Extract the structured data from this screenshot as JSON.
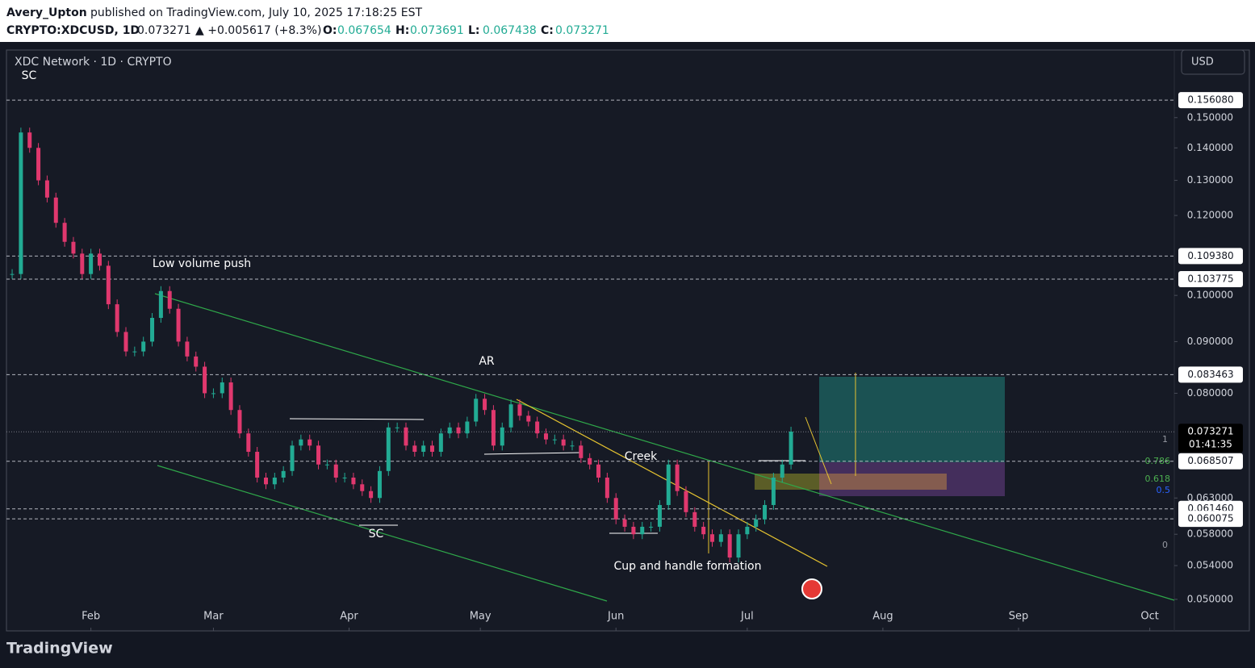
{
  "header": {
    "publisher": "Avery_Upton",
    "published": "published on TradingView.com, July 10, 2025 17:18:25 EST",
    "symbol": "CRYPTO:XDCUSD, 1D",
    "last": "0.073271",
    "change": "▲ +0.005617 (+8.3%)",
    "ohlc": [
      [
        "O:",
        "0.067654"
      ],
      [
        "H:",
        "0.073691"
      ],
      [
        "L:",
        "0.067438"
      ],
      [
        "C:",
        "0.073271"
      ]
    ]
  },
  "chart_data": {
    "type": "candlestick",
    "title": "XDC Network · 1D · CRYPTO",
    "currency": "USD",
    "x": [
      13,
      15,
      17,
      19,
      21,
      23,
      25,
      27,
      29,
      31,
      33,
      35,
      37,
      39,
      41,
      43,
      45,
      47,
      49,
      51,
      53,
      55,
      57,
      59,
      61,
      63,
      65,
      67,
      69,
      71,
      73,
      75,
      77,
      79,
      81,
      83,
      85,
      87,
      89,
      91,
      93,
      95,
      97,
      99,
      101,
      103,
      105,
      107,
      109,
      111,
      113,
      115,
      117,
      119,
      121,
      123,
      125,
      127,
      129,
      131,
      133,
      135,
      137,
      139,
      141,
      143,
      145,
      147,
      149,
      151,
      153,
      155,
      157,
      159,
      161,
      163,
      165,
      167,
      169,
      171,
      173,
      175,
      177,
      179,
      181,
      183,
      185,
      187,
      189,
      191
    ],
    "values": [
      0.105,
      0.145,
      0.14,
      0.13,
      0.125,
      0.118,
      0.113,
      0.11,
      0.105,
      0.11,
      0.107,
      0.098,
      0.092,
      0.088,
      0.088,
      0.09,
      0.095,
      0.101,
      0.097,
      0.09,
      0.087,
      0.085,
      0.08,
      0.08,
      0.082,
      0.077,
      0.073,
      0.07,
      0.066,
      0.065,
      0.066,
      0.067,
      0.071,
      0.072,
      0.071,
      0.068,
      0.068,
      0.066,
      0.066,
      0.065,
      0.064,
      0.063,
      0.067,
      0.074,
      0.074,
      0.071,
      0.07,
      0.071,
      0.07,
      0.073,
      0.074,
      0.073,
      0.075,
      0.079,
      0.077,
      0.071,
      0.074,
      0.078,
      0.076,
      0.075,
      0.073,
      0.072,
      0.072,
      0.071,
      0.071,
      0.069,
      0.068,
      0.066,
      0.063,
      0.06,
      0.059,
      0.058,
      0.059,
      0.059,
      0.062,
      0.068,
      0.064,
      0.061,
      0.059,
      0.058,
      0.057,
      0.058,
      0.055,
      0.058,
      0.059,
      0.06,
      0.062,
      0.066,
      0.068,
      0.0733
    ],
    "up_color": "#22ab94",
    "down_color": "#e0386e",
    "log": true,
    "xlim": [
      11.7,
      278.6
    ],
    "xticks": [
      {
        "value": 31,
        "label": "Feb"
      },
      {
        "value": 59,
        "label": "Mar"
      },
      {
        "value": 90,
        "label": "Apr"
      },
      {
        "value": 120,
        "label": "May"
      },
      {
        "value": 151,
        "label": "Jun"
      },
      {
        "value": 181,
        "label": "Jul"
      },
      {
        "value": 212,
        "label": "Aug"
      },
      {
        "value": 243,
        "label": "Sep"
      },
      {
        "value": 273,
        "label": "Oct"
      }
    ],
    "ylim": [
      0.0467,
      0.175
    ],
    "yticks": [
      {
        "value": 0.15,
        "label": "0.150000"
      },
      {
        "value": 0.14,
        "label": "0.140000"
      },
      {
        "value": 0.13,
        "label": "0.130000"
      },
      {
        "value": 0.12,
        "label": "0.120000"
      },
      {
        "value": 0.1,
        "label": "0.100000"
      },
      {
        "value": 0.09,
        "label": "0.090000"
      },
      {
        "value": 0.08,
        "label": "0.080000"
      },
      {
        "value": 0.063,
        "label": "0.063000"
      },
      {
        "value": 0.058,
        "label": "0.058000"
      },
      {
        "value": 0.054,
        "label": "0.054000"
      },
      {
        "value": 0.05,
        "label": "0.050000"
      }
    ],
    "levels": [
      {
        "value": 0.15608,
        "label": "0.156080"
      },
      {
        "value": 0.10938,
        "label": "0.109380"
      },
      {
        "value": 0.103775,
        "label": "0.103775"
      },
      {
        "value": 0.083463,
        "label": "0.083463"
      },
      {
        "value": 0.068507,
        "label": "0.068507"
      },
      {
        "value": 0.06146,
        "label": "0.061460"
      },
      {
        "value": 0.060075,
        "label": "0.060075"
      }
    ],
    "current": {
      "value": 0.073271,
      "label": "0.073271",
      "countdown": "01:41:35"
    },
    "annotations": [
      "SC",
      "Low volume push",
      "AR",
      "Creek",
      "SC",
      "Cup and handle formation"
    ],
    "fib_labels": [
      "1",
      "0.786",
      "0.618",
      "0.5",
      "0"
    ],
    "watermark": "TradingView"
  }
}
